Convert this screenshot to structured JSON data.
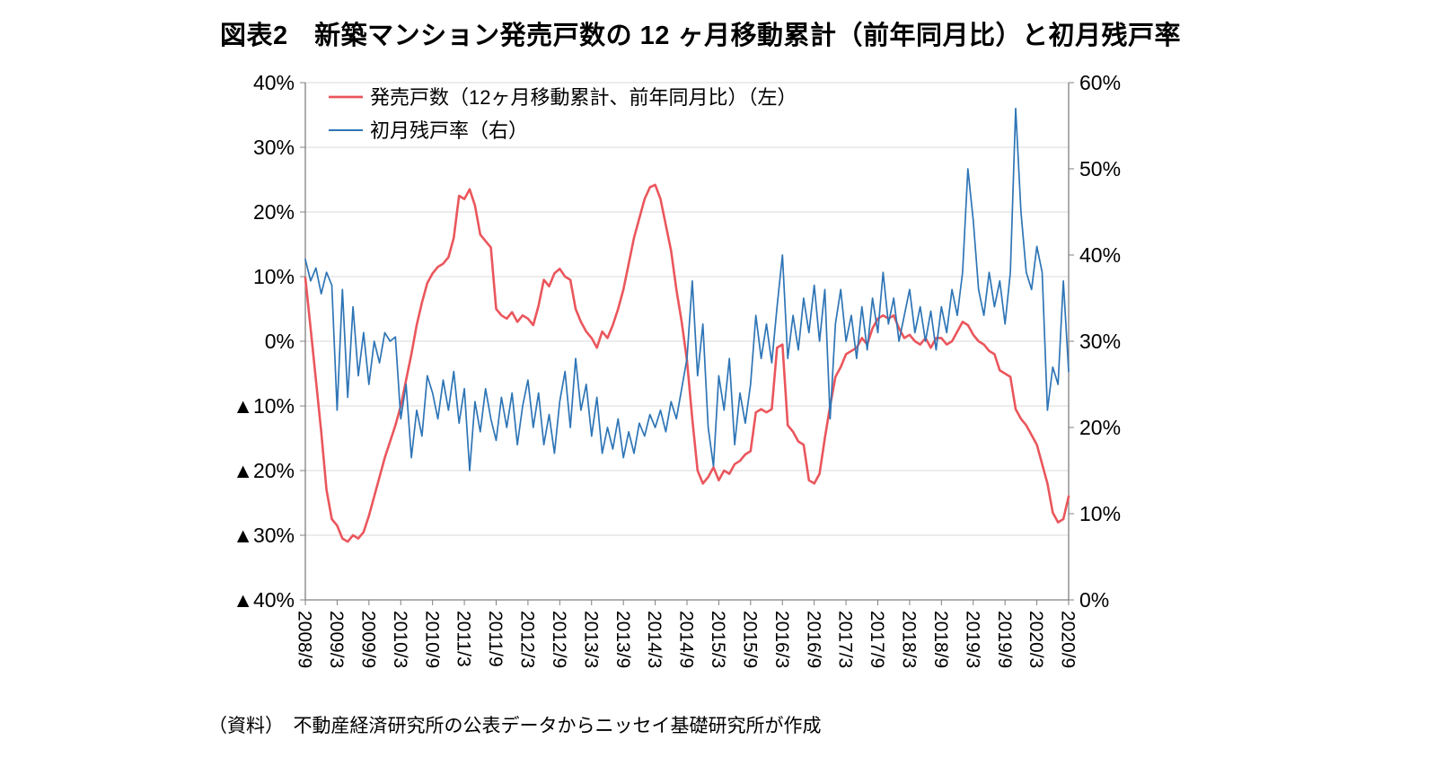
{
  "title": "図表2　新築マンション発売戸数の 12 ヶ月移動累計（前年同月比）と初月残戸率",
  "source_note": "（資料）　不動産経済研究所の公表データからニッセイ基礎研究所が作成",
  "colors": {
    "series_left": "#ea565c",
    "series_right": "#2e75b6",
    "grid": "#d9d9d9",
    "axis": "#808080",
    "text": "#000000",
    "background": "#ffffff"
  },
  "chart_data": {
    "type": "line",
    "title": "図表2　新築マンション発売戸数の 12 ヶ月移動累計（前年同月比）と初月残戸率",
    "x_tick_interval_months": 6,
    "x_tick_labels": [
      "2008/9",
      "2009/3",
      "2009/9",
      "2010/3",
      "2010/9",
      "2011/3",
      "2011/9",
      "2012/3",
      "2012/9",
      "2013/3",
      "2013/9",
      "2014/3",
      "2014/9",
      "2015/3",
      "2015/9",
      "2016/3",
      "2016/9",
      "2017/3",
      "2017/9",
      "2018/3",
      "2018/9",
      "2019/3",
      "2019/9",
      "2020/3",
      "2020/9"
    ],
    "left_axis": {
      "min": -40,
      "max": 40,
      "ticks": [
        "40%",
        "30%",
        "20%",
        "10%",
        "0%",
        "▲10%",
        "▲20%",
        "▲30%",
        "▲40%"
      ]
    },
    "right_axis": {
      "min": 0,
      "max": 60,
      "ticks": [
        "60%",
        "50%",
        "40%",
        "30%",
        "20%",
        "10%",
        "0%"
      ]
    },
    "gridlines": "horizontal",
    "legend_position": "top-left-inside",
    "series": [
      {
        "name": "発売戸数（12ヶ月移動累計、前年同月比）（左）",
        "axis": "left",
        "color": "#ea565c",
        "values": [
          9.8,
          2,
          -6,
          -14,
          -23,
          -27.5,
          -28.5,
          -30.5,
          -31,
          -30,
          -30.5,
          -29.5,
          -27,
          -24,
          -21,
          -18,
          -15.5,
          -13,
          -10,
          -6,
          -2,
          2.5,
          6,
          9,
          10.5,
          11.5,
          12,
          13,
          16,
          22.5,
          22,
          23.5,
          21,
          16.5,
          15.5,
          14.5,
          5,
          4,
          3.5,
          4.5,
          3,
          4,
          3.5,
          2.5,
          5.5,
          9.5,
          8.5,
          10.5,
          11.2,
          10,
          9.5,
          5,
          3,
          1.5,
          0.5,
          -1,
          1.5,
          0.5,
          2.5,
          5,
          8,
          12,
          16,
          19,
          22,
          23.8,
          24.2,
          22,
          18,
          14,
          8,
          3,
          -3,
          -12,
          -20,
          -22,
          -21,
          -19.5,
          -21.5,
          -20,
          -20.5,
          -19,
          -18.5,
          -17.5,
          -17,
          -11,
          -10.5,
          -11,
          -10.5,
          -1,
          -0.5,
          -13,
          -14,
          -15.5,
          -16,
          -21.5,
          -22,
          -20.5,
          -15,
          -10,
          -5.5,
          -4,
          -2,
          -1.5,
          -1,
          0.5,
          -0.5,
          2,
          3.5,
          4,
          3.5,
          4,
          2,
          0.5,
          1,
          0,
          -0.5,
          0.5,
          -1,
          0.5,
          0.5,
          -0.5,
          0,
          1.5,
          3,
          2.5,
          1,
          0,
          -0.5,
          -1.5,
          -2,
          -4.5,
          -5,
          -5.5,
          -10.5,
          -12,
          -13,
          -14.5,
          -16,
          -19,
          -22,
          -26.5,
          -28,
          -27.5,
          -24
        ]
      },
      {
        "name": "初月残戸率（右）",
        "axis": "right",
        "color": "#2e75b6",
        "values": [
          39.5,
          37,
          38.5,
          35.5,
          38,
          36.5,
          22,
          36,
          23.5,
          34,
          26,
          31,
          25,
          30,
          27.5,
          31,
          30,
          30.5,
          21,
          25,
          16.5,
          22,
          19,
          26,
          24,
          21,
          25.5,
          22,
          26.5,
          20.5,
          24.5,
          15,
          23,
          19.5,
          24.5,
          21,
          18.5,
          23.5,
          20,
          24,
          18,
          22.5,
          25.5,
          20,
          24,
          18,
          21.5,
          17,
          23,
          26.5,
          20,
          28,
          22,
          25,
          19,
          23.5,
          17,
          20,
          17.5,
          21,
          16.5,
          19.5,
          17,
          20.5,
          19,
          21.5,
          20,
          22,
          19.5,
          23,
          21,
          24.5,
          28,
          37,
          26,
          32,
          20,
          15.5,
          26,
          22,
          28,
          18,
          24,
          20.5,
          25,
          33,
          28,
          32,
          27.5,
          34,
          40,
          28,
          33,
          29,
          35,
          31,
          36.5,
          30,
          36,
          21,
          32,
          36,
          30,
          33,
          28,
          34,
          29,
          35,
          31,
          38,
          32,
          35,
          30,
          33,
          36,
          31,
          34,
          30,
          33.5,
          29,
          34,
          31,
          36,
          33,
          38,
          50,
          44,
          36,
          33,
          38,
          34,
          37,
          32,
          38,
          57,
          45,
          38,
          36,
          41,
          38,
          22,
          27,
          25,
          37,
          26.5
        ]
      }
    ]
  }
}
